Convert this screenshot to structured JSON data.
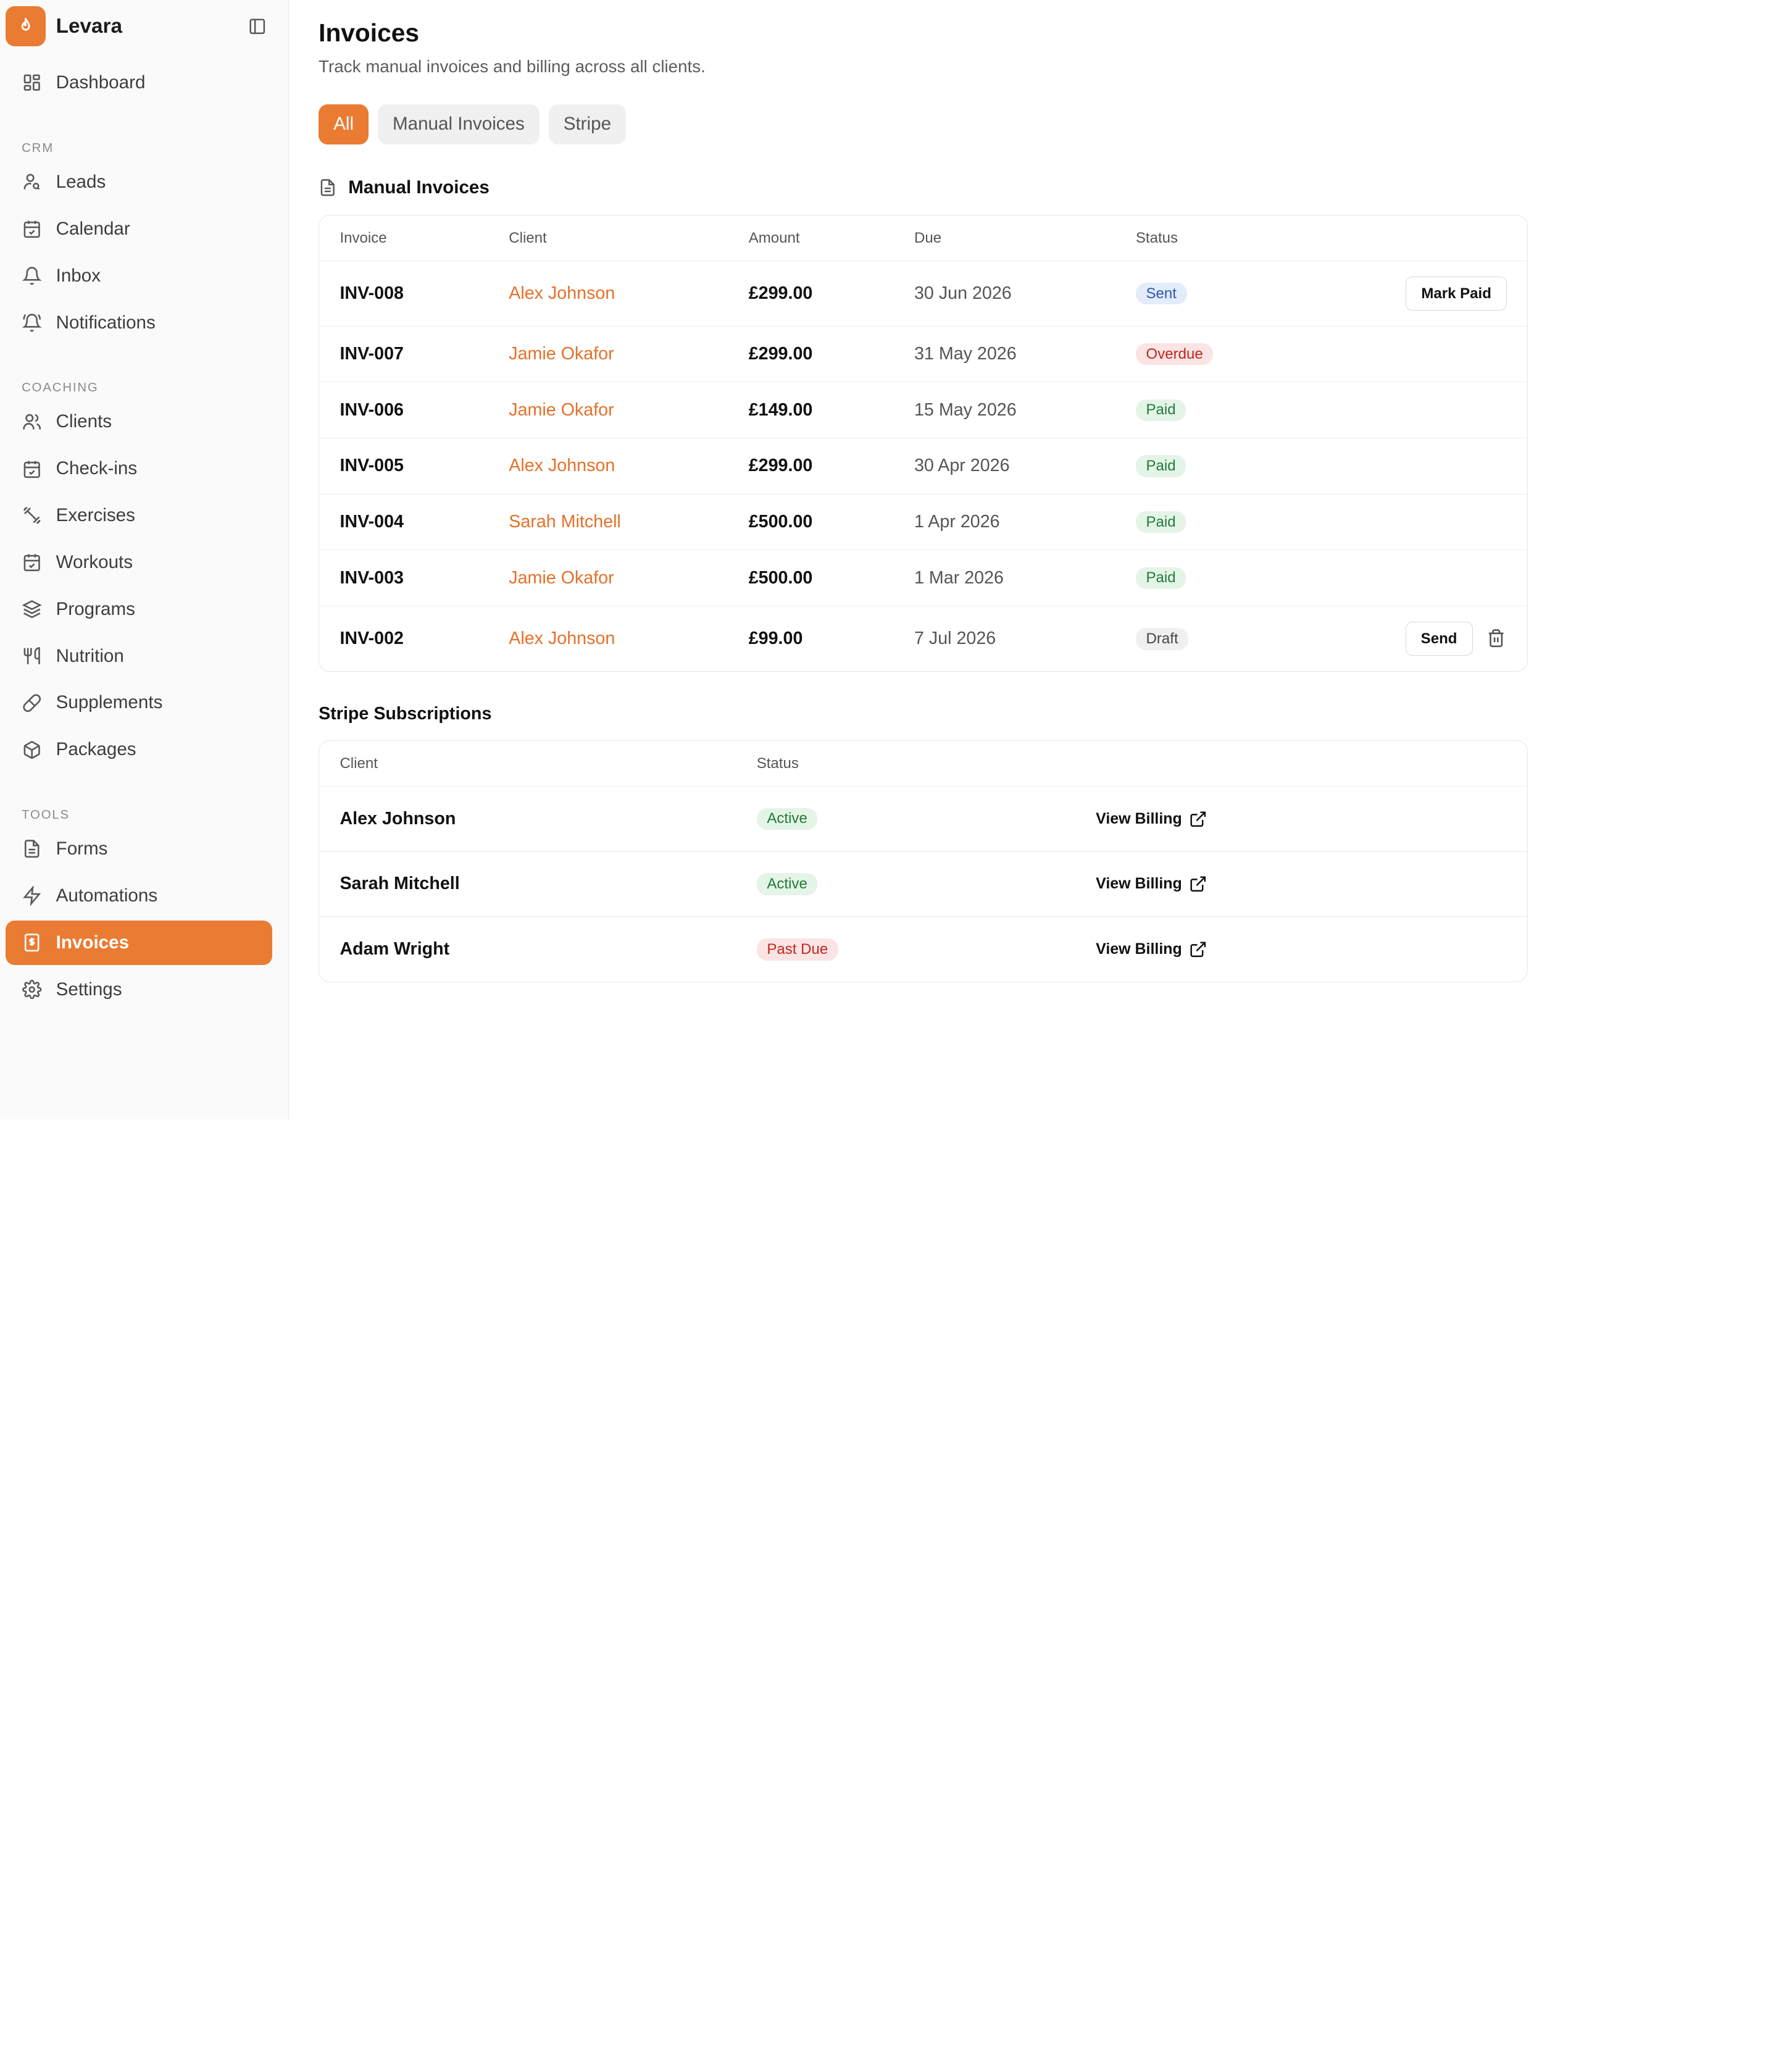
{
  "brand": {
    "name": "Levara"
  },
  "sidebar": {
    "top": [
      {
        "label": "Dashboard",
        "icon": "dashboard-icon"
      }
    ],
    "sections": [
      {
        "label": "CRM",
        "items": [
          {
            "label": "Leads",
            "icon": "user-search-icon"
          },
          {
            "label": "Calendar",
            "icon": "calendar-icon"
          },
          {
            "label": "Inbox",
            "icon": "bell-icon"
          },
          {
            "label": "Notifications",
            "icon": "bell-ring-icon"
          }
        ]
      },
      {
        "label": "COACHING",
        "items": [
          {
            "label": "Clients",
            "icon": "users-icon"
          },
          {
            "label": "Check-ins",
            "icon": "calendar-check-icon"
          },
          {
            "label": "Exercises",
            "icon": "dumbbell-icon"
          },
          {
            "label": "Workouts",
            "icon": "calendar-icon"
          },
          {
            "label": "Programs",
            "icon": "layers-icon"
          },
          {
            "label": "Nutrition",
            "icon": "utensils-icon"
          },
          {
            "label": "Supplements",
            "icon": "pill-icon"
          },
          {
            "label": "Packages",
            "icon": "package-icon"
          }
        ]
      },
      {
        "label": "TOOLS",
        "items": [
          {
            "label": "Forms",
            "icon": "file-text-icon"
          },
          {
            "label": "Automations",
            "icon": "zap-icon"
          },
          {
            "label": "Invoices",
            "icon": "receipt-icon"
          },
          {
            "label": "Settings",
            "icon": "gear-icon"
          }
        ]
      }
    ]
  },
  "page": {
    "title": "Invoices",
    "subtitle": "Track manual invoices and billing across all clients."
  },
  "tabs": [
    {
      "label": "All"
    },
    {
      "label": "Manual Invoices"
    },
    {
      "label": "Stripe"
    }
  ],
  "manual": {
    "title": "Manual Invoices",
    "headers": {
      "invoice": "Invoice",
      "client": "Client",
      "amount": "Amount",
      "due": "Due",
      "status": "Status"
    },
    "rows": [
      {
        "invoice": "INV-008",
        "client": "Alex Johnson",
        "amount": "£299.00",
        "due": "30 Jun 2026",
        "status": "Sent",
        "action": "Mark Paid"
      },
      {
        "invoice": "INV-007",
        "client": "Jamie Okafor",
        "amount": "£299.00",
        "due": "31 May 2026",
        "status": "Overdue"
      },
      {
        "invoice": "INV-006",
        "client": "Jamie Okafor",
        "amount": "£149.00",
        "due": "15 May 2026",
        "status": "Paid"
      },
      {
        "invoice": "INV-005",
        "client": "Alex Johnson",
        "amount": "£299.00",
        "due": "30 Apr 2026",
        "status": "Paid"
      },
      {
        "invoice": "INV-004",
        "client": "Sarah Mitchell",
        "amount": "£500.00",
        "due": "1 Apr 2026",
        "status": "Paid"
      },
      {
        "invoice": "INV-003",
        "client": "Jamie Okafor",
        "amount": "£500.00",
        "due": "1 Mar 2026",
        "status": "Paid"
      },
      {
        "invoice": "INV-002",
        "client": "Alex Johnson",
        "amount": "£99.00",
        "due": "7 Jul 2026",
        "status": "Draft",
        "action": "Send"
      }
    ]
  },
  "stripe": {
    "title": "Stripe Subscriptions",
    "headers": {
      "client": "Client",
      "status": "Status"
    },
    "rows": [
      {
        "client": "Alex Johnson",
        "status": "Active",
        "action": "View Billing"
      },
      {
        "client": "Sarah Mitchell",
        "status": "Active",
        "action": "View Billing"
      },
      {
        "client": "Adam Wright",
        "status": "Past Due",
        "action": "View Billing"
      }
    ]
  },
  "colors": {
    "accent": "#ea7b33",
    "link": "#e4712a"
  }
}
